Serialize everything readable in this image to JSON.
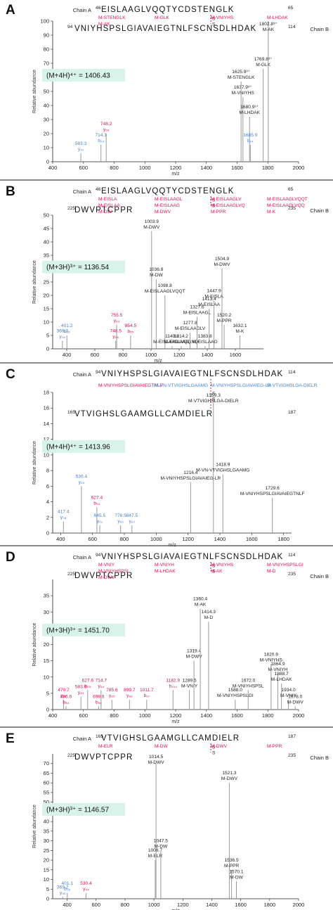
{
  "chart_data": [
    {
      "type": "bar",
      "panel": "A",
      "chains": [
        {
          "label": "Chain A",
          "start": "46",
          "end": "65",
          "sequence": "EISLAAGLVQQTYCDSTENGLK",
          "cys": "C67"
        },
        {
          "label": "Chain B",
          "start": "94",
          "end": "114",
          "sequence": "VNIYHSPSLGIAVAIEGTNLFSCNSDLHDAK",
          "cys": "C106"
        }
      ],
      "precursor": "(M+4H)⁴⁺ = 1406.43",
      "xlabel": "m/z",
      "ylabel": "Relative abundance",
      "xlim": [
        400,
        2000
      ],
      "ylim": [
        0,
        100
      ],
      "xticks": [
        400,
        600,
        800,
        1000,
        1200,
        1400,
        1600,
        1800,
        2000
      ],
      "yticks": [
        0,
        10,
        20,
        30,
        40,
        50,
        60,
        70,
        80,
        90,
        100
      ],
      "top_labels": [
        {
          "text": "M-STENGLK",
          "color": "#d4145a"
        },
        {
          "text": "M-GLK",
          "color": "#d4145a"
        },
        {
          "text": "M-VNIYHS",
          "color": "#d4145a"
        },
        {
          "text": "M-LHDAK",
          "color": "#d4145a"
        },
        {
          "text": "M-AK",
          "color": "#d4145a"
        }
      ],
      "peaks": [
        {
          "x": 583.3,
          "y": 6,
          "label": "583.3",
          "ion": "y₄₂",
          "color": "#4a7fd0"
        },
        {
          "x": 714.1,
          "y": 12,
          "label": "714.1",
          "ion": "b₂₄",
          "color": "#4a7fd0"
        },
        {
          "x": 748.2,
          "y": 20,
          "label": "748.2",
          "ion": "y₅₆",
          "color": "#d4145a"
        },
        {
          "x": 1637.9,
          "y": 46,
          "label": "1637.9³⁺",
          "ion": "M-VNIYHS",
          "color": "#222"
        },
        {
          "x": 1625.9,
          "y": 57,
          "label": "1625.9³⁺",
          "ion": "M-STENGLK",
          "color": "#222"
        },
        {
          "x": 1769.8,
          "y": 66,
          "label": "1769.8³⁺",
          "ion": "M-GLK",
          "color": "#222"
        },
        {
          "x": 1802.8,
          "y": 100,
          "label": "1802.8³⁺",
          "ion": "M-AK",
          "color": "#222"
        },
        {
          "x": 1680.9,
          "y": 32,
          "label": "1680.9³⁺",
          "ion": "M-LHDAK",
          "color": "#222"
        },
        {
          "x": 1685.9,
          "y": 12,
          "label": "1685.9",
          "ion": "b₂₄",
          "color": "#4a7fd0"
        }
      ]
    },
    {
      "type": "bar",
      "panel": "B",
      "chains": [
        {
          "label": "Chain A",
          "start": "46",
          "end": "65",
          "sequence": "EISLAAGLVQQTYCDSTENGLK",
          "cys": "C67"
        },
        {
          "label": "Chain B",
          "start": "225",
          "end": "235",
          "sequence": "DWVPTCPPR",
          "cys": "C231"
        }
      ],
      "precursor": "(M+3H)³⁺ = 1136.54",
      "xlabel": "m/z",
      "ylabel": "Relative abundance",
      "xlim": [
        300,
        1800
      ],
      "ylim": [
        0,
        50
      ],
      "xticks": [
        400,
        600,
        800,
        1000,
        1200,
        1400,
        1600
      ],
      "yticks": [
        0,
        5,
        10,
        15,
        20,
        25,
        30,
        35,
        40,
        45,
        50
      ],
      "top_labels": [
        {
          "text": "M-EISLA",
          "color": "#d4145a"
        },
        {
          "text": "M-EISLAAGL",
          "color": "#d4145a"
        },
        {
          "text": "M-EISLAAGLV",
          "color": "#d4145a"
        },
        {
          "text": "M-EISLAAGLVQQT",
          "color": "#d4145a"
        },
        {
          "text": "M-EISLAA",
          "color": "#d4145a"
        },
        {
          "text": "M-EISLAAG",
          "color": "#d4145a"
        },
        {
          "text": "M-EISLAAGLVQ",
          "color": "#d4145a"
        },
        {
          "text": "M-EISLAAGLVQQ",
          "color": "#d4145a"
        },
        {
          "text": "M-DW",
          "color": "#d4145a"
        },
        {
          "text": "M-DWV",
          "color": "#d4145a"
        },
        {
          "text": "M-PPR",
          "color": "#d4145a"
        },
        {
          "text": "M-K",
          "color": "#d4145a"
        }
      ],
      "peaks": [
        {
          "x": 369.3,
          "y": 3,
          "label": "369.3",
          "ion": "y₃₅",
          "color": "#4a7fd0"
        },
        {
          "x": 401.2,
          "y": 5,
          "label": "401.2",
          "ion": "b₃₆",
          "color": "#4a7fd0"
        },
        {
          "x": 748.5,
          "y": 3,
          "label": "748.5",
          "ion": "y₈₆",
          "color": "#d4145a"
        },
        {
          "x": 755.5,
          "y": 9,
          "label": "755.5",
          "ion": "y₈₃",
          "color": "#d4145a"
        },
        {
          "x": 854.5,
          "y": 5,
          "label": "854.5",
          "ion": "b₆₅",
          "color": "#d4145a"
        },
        {
          "x": 1003.9,
          "y": 44,
          "label": "1003.9",
          "ion": "M-DWV",
          "color": "#222"
        },
        {
          "x": 1036.8,
          "y": 26,
          "label": "1036.8",
          "ion": "M-DW",
          "color": "#222"
        },
        {
          "x": 1098.8,
          "y": 20,
          "label": "1098.8",
          "ion": "M-EISLAAGLVQQT",
          "color": "#222"
        },
        {
          "x": 1149.8,
          "y": 1,
          "label": "1149.8",
          "ion": "M-EISLAAGLVQQ",
          "color": "#222"
        },
        {
          "x": 1214.2,
          "y": 1,
          "label": "1214.2",
          "ion": "M-EISLAAGLVQ",
          "color": "#222"
        },
        {
          "x": 1277.8,
          "y": 6,
          "label": "1277.8",
          "ion": "M-EISLAAGLV",
          "color": "#222"
        },
        {
          "x": 1327.6,
          "y": 12,
          "label": "1327.6",
          "ion": "M-EISLAAGL",
          "color": "#222"
        },
        {
          "x": 1383.8,
          "y": 1,
          "label": "1383.8",
          "ion": "M-EISLAAG",
          "color": "#222"
        },
        {
          "x": 1413.4,
          "y": 15,
          "label": "1413.4",
          "ion": "M-EISLAA",
          "color": "#222"
        },
        {
          "x": 1447.9,
          "y": 18,
          "label": "1447.9",
          "ion": "M-EISLA",
          "color": "#222"
        },
        {
          "x": 1504.9,
          "y": 30,
          "label": "1504.9",
          "ion": "M-DWV",
          "color": "#222"
        },
        {
          "x": 1520.2,
          "y": 9,
          "label": "1520.2",
          "ion": "M-PPR",
          "color": "#222"
        },
        {
          "x": 1632.1,
          "y": 5,
          "label": "1632.1",
          "ion": "M-K",
          "color": "#222"
        }
      ]
    },
    {
      "type": "bar",
      "panel": "C",
      "chains": [
        {
          "label": "Chain A",
          "start": "94",
          "end": "114",
          "sequence": "VNIYHSPSLGIAVAIEGTNLFSCNSDLHDAK",
          "cys": "C106"
        },
        {
          "label": "",
          "start": "165",
          "end": "187",
          "sequence": "VTVIGHSLGAAMGLLCAMDIELR",
          "cys": "C180"
        }
      ],
      "precursor": "(M+4H)⁴⁺ = 1413.96",
      "xlabel": "m/z",
      "ylabel": "Relative abundance",
      "xlim": [
        350,
        1850
      ],
      "ylim": [
        0,
        18
      ],
      "xticks": [
        400,
        600,
        800,
        1000,
        1200,
        1400,
        1600,
        1800
      ],
      "yticks": [
        0,
        2,
        4,
        6,
        8,
        10,
        12,
        14,
        16,
        18
      ],
      "top_labels": [
        {
          "text": "M-VNIYHSPSLGIAVAIEGTNLF",
          "color": "#d4145a"
        },
        {
          "text": "M-VN-VTVIGHSLGAAMG",
          "color": "#4a7fd0"
        },
        {
          "text": "M-VNIYHSPSLGIAVAIEG-LR",
          "color": "#4a7fd0"
        },
        {
          "text": "M-VTVIGHSLGA-DIELR",
          "color": "#4a7fd0"
        }
      ],
      "peaks": [
        {
          "x": 417.4,
          "y": 1.5,
          "label": "417.4",
          "ion": "y₃₈",
          "color": "#4a7fd0"
        },
        {
          "x": 530.4,
          "y": 6,
          "label": "530.4",
          "ion": "y₄₉",
          "color": "#4a7fd0"
        },
        {
          "x": 627.4,
          "y": 3.3,
          "label": "627.4",
          "ion": "b₅₄",
          "color": "#d4145a"
        },
        {
          "x": 645.5,
          "y": 1,
          "label": "645.5",
          "ion": "y₅₁",
          "color": "#4a7fd0"
        },
        {
          "x": 776.5,
          "y": 1,
          "label": "776.5",
          "ion": "y₆₂",
          "color": "#4a7fd0"
        },
        {
          "x": 847.5,
          "y": 1,
          "label": "847.5",
          "ion": "y₆₃",
          "color": "#4a7fd0"
        },
        {
          "x": 1216.4,
          "y": 6.5,
          "label": "1216.4",
          "ion": "M-VNIYHSPSLGIAVAIEG-LR",
          "color": "#222"
        },
        {
          "x": 1359.3,
          "y": 17,
          "label": "1359.3",
          "ion": "M-VTVIGHSLGA-DIELR",
          "color": "#222"
        },
        {
          "x": 1418.9,
          "y": 7.5,
          "label": "1418.9",
          "ion": "M-VN-VTVIGHSLGAAMG",
          "color": "#222"
        },
        {
          "x": 1729.6,
          "y": 4.5,
          "label": "1729.6",
          "ion": "M-VNIYHSPSLGIAVAIEGTNLF",
          "color": "#222"
        }
      ]
    },
    {
      "type": "bar",
      "panel": "D",
      "chains": [
        {
          "label": "Chain A",
          "start": "94",
          "end": "114",
          "sequence": "VNIYHSPSLGIAVAIEGTNLFSCNSDLHDAK",
          "cys": "C106"
        },
        {
          "label": "Chain B",
          "start": "225",
          "end": "235",
          "sequence": "DWVPTCPPR",
          "cys": "C231"
        }
      ],
      "precursor": "(M+3H)³⁺ = 1451.70",
      "xlabel": "m/z",
      "ylabel": "Relative abundance",
      "xlim": [
        400,
        2000
      ],
      "ylim": [
        0,
        40
      ],
      "xticks": [
        400,
        600,
        800,
        1000,
        1200,
        1400,
        1600,
        1800,
        2000
      ],
      "yticks": [
        0,
        5,
        10,
        15,
        20,
        25,
        30,
        35
      ],
      "top_labels": [
        {
          "text": "M-VNIY",
          "color": "#d4145a"
        },
        {
          "text": "M-VNIYH",
          "color": "#d4145a"
        },
        {
          "text": "M-VNIYHS",
          "color": "#d4145a"
        },
        {
          "text": "M-VNIYHSPSLGI",
          "color": "#d4145a"
        },
        {
          "text": "M-VNIYHSPSL",
          "color": "#d4145a"
        },
        {
          "text": "M-LHDAK",
          "color": "#d4145a"
        },
        {
          "text": "M-AK",
          "color": "#d4145a"
        },
        {
          "text": "M-D",
          "color": "#d4145a"
        },
        {
          "text": "M-DWV",
          "color": "#d4145a"
        }
      ],
      "peaks": [
        {
          "x": 470.7,
          "y": 3,
          "label": "470.7",
          "ion": "y₈₂",
          "color": "#d4145a"
        },
        {
          "x": 486.6,
          "y": 1,
          "label": "486.6",
          "ion": "b₈₄",
          "color": "#d4145a"
        },
        {
          "x": 583.6,
          "y": 4,
          "label": "583.6",
          "ion": "y₈₃",
          "color": "#d4145a"
        },
        {
          "x": 627.6,
          "y": 6,
          "label": "627.6",
          "ion": "b₈₅",
          "color": "#d4145a"
        },
        {
          "x": 698.8,
          "y": 1,
          "label": "698.8",
          "ion": "b₈₆",
          "color": "#d4145a"
        },
        {
          "x": 714.7,
          "y": 6,
          "label": "714.7",
          "ion": "y₈₄",
          "color": "#d4145a"
        },
        {
          "x": 785.6,
          "y": 3,
          "label": "785.6",
          "ion": "y₈₅",
          "color": "#d4145a"
        },
        {
          "x": 899.7,
          "y": 3,
          "label": "899.7",
          "ion": "y₈₆",
          "color": "#d4145a"
        },
        {
          "x": 1011.7,
          "y": 3,
          "label": "1011.7",
          "ion": "b₉₇",
          "color": "#d4145a"
        },
        {
          "x": 1182.9,
          "y": 6,
          "label": "1182.9",
          "ion": "b₁₀₄",
          "color": "#d4145a"
        },
        {
          "x": 1289.5,
          "y": 6,
          "label": "1289.5",
          "ion": "M-VNIY",
          "color": "#222"
        },
        {
          "x": 1319.4,
          "y": 15,
          "label": "1319.4",
          "ion": "M-DWV",
          "color": "#222"
        },
        {
          "x": 1360.4,
          "y": 31,
          "label": "1360.4",
          "ion": "M-AK",
          "color": "#222"
        },
        {
          "x": 1414.3,
          "y": 27,
          "label": "1414.3",
          "ion": "M-D",
          "color": "#222"
        },
        {
          "x": 1588.0,
          "y": 3,
          "label": "1588.0",
          "ion": "M-VNIYHSPSLGI",
          "color": "#222"
        },
        {
          "x": 1672.0,
          "y": 6,
          "label": "1672.0",
          "ion": "M-VNIYHSPSL",
          "color": "#222"
        },
        {
          "x": 1820.9,
          "y": 14,
          "label": "1820.9",
          "ion": "M-VNIYHS",
          "color": "#222"
        },
        {
          "x": 1864.9,
          "y": 11,
          "label": "1864.9",
          "ion": "M-VNIYH",
          "color": "#222"
        },
        {
          "x": 1888.7,
          "y": 8,
          "label": "1888.7",
          "ion": "M-LHDAK",
          "color": "#222"
        },
        {
          "x": 1934.0,
          "y": 3,
          "label": "1934.0",
          "ion": "M-VNIY",
          "color": "#222"
        },
        {
          "x": 1978.0,
          "y": 1,
          "label": "1978.0",
          "ion": "M-DWV",
          "color": "#222"
        }
      ]
    },
    {
      "type": "bar",
      "panel": "E",
      "chains": [
        {
          "label": "Chain A",
          "start": "165",
          "end": "187",
          "sequence": "VTVIGHSLGAAMGLLCAMDIELR",
          "cys": "C180"
        },
        {
          "label": "Chain B",
          "start": "225",
          "end": "235",
          "sequence": "DWVPTCPPR",
          "cys": "C231"
        }
      ],
      "precursor": "(M+3H)³⁺ = 1146.57",
      "xlabel": "m/z",
      "ylabel": "Relative abundance",
      "xlim": [
        300,
        2000
      ],
      "ylim": [
        0,
        75
      ],
      "xticks": [
        400,
        600,
        800,
        1000,
        1200,
        1400,
        1600,
        1800,
        2000
      ],
      "yticks": [
        0,
        5,
        10,
        15,
        20,
        25,
        30,
        35,
        40,
        45,
        50,
        55,
        60,
        65,
        70
      ],
      "top_labels": [
        {
          "text": "M-ELR",
          "color": "#d4145a"
        },
        {
          "text": "M-DW",
          "color": "#d4145a"
        },
        {
          "text": "M-DWV",
          "color": "#d4145a"
        },
        {
          "text": "M-PPR",
          "color": "#d4145a"
        }
      ],
      "peaks": [
        {
          "x": 369.2,
          "y": 1,
          "label": "369.2",
          "ion": "y₃₅",
          "color": "#4a7fd0"
        },
        {
          "x": 401.1,
          "y": 3,
          "label": "401.1",
          "ion": "b₃₆",
          "color": "#4a7fd0"
        },
        {
          "x": 530.4,
          "y": 3,
          "label": "530.4",
          "ion": "y₄₄",
          "color": "#d4145a"
        },
        {
          "x": 1008.7,
          "y": 20,
          "label": "1008.7",
          "ion": "M-ELR",
          "color": "#222"
        },
        {
          "x": 1014.5,
          "y": 70,
          "label": "1014.5",
          "ion": "M-DWV",
          "color": "#222"
        },
        {
          "x": 1047.5,
          "y": 25,
          "label": "1047.5",
          "ion": "M-DW",
          "color": "#222"
        },
        {
          "x": 1521.3,
          "y": 60,
          "label": "1521.3",
          "ion": "M-DWV",
          "color": "#222"
        },
        {
          "x": 1536.5,
          "y": 15,
          "label": "1536.5",
          "ion": "M-PPR",
          "color": "#222"
        },
        {
          "x": 1570.1,
          "y": 9,
          "label": "1570.1",
          "ion": "M-DW",
          "color": "#222"
        }
      ]
    }
  ]
}
